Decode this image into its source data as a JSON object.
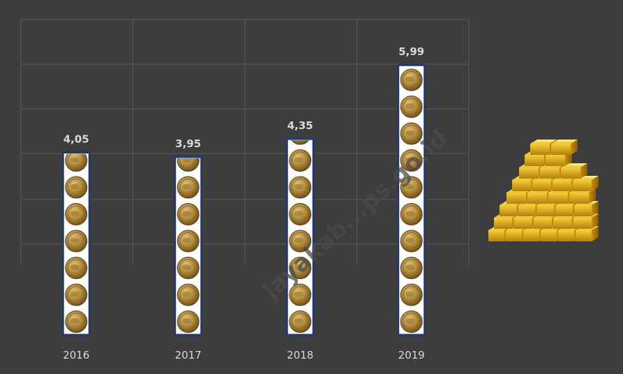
{
  "chart_data": {
    "type": "bar",
    "categories": [
      "2016",
      "2017",
      "2018",
      "2019"
    ],
    "values": [
      4.05,
      3.95,
      4.35,
      5.99
    ],
    "value_labels": [
      "4,05",
      "3,95",
      "4,35",
      "5,99"
    ],
    "ylim": [
      0,
      7
    ],
    "grid": true,
    "bar_style": "stacked-coin-pictogram",
    "colors": {
      "background": "#3d3d3d",
      "bar_fill": "#ffffff",
      "bar_border": "#1f3a73",
      "coin": "#b08a3a",
      "text": "#d9d9d9"
    }
  },
  "decoration": {
    "icon": "gold-bars-pyramid-icon",
    "watermark": "jayakab...ps.go.id"
  }
}
